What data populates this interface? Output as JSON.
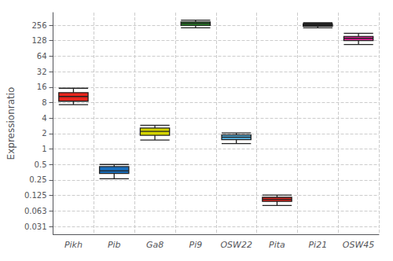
{
  "chart_data": {
    "type": "box",
    "categories": [
      "Pikh",
      "Pib",
      "Ga8",
      "Pi9",
      "OSW22",
      "Pita",
      "Pi21",
      "OSW45"
    ],
    "values": [
      {
        "low": 7.3,
        "q1": 8.5,
        "median": 10.5,
        "q3": 12.5,
        "high": 15.2
      },
      {
        "low": 0.265,
        "q1": 0.335,
        "median": 0.375,
        "q3": 0.455,
        "high": 0.5
      },
      {
        "low": 1.5,
        "q1": 1.85,
        "median": 2.2,
        "q3": 2.55,
        "high": 2.9
      },
      {
        "low": 228,
        "q1": 252,
        "median": 275,
        "q3": 295,
        "high": 320
      },
      {
        "low": 1.28,
        "q1": 1.52,
        "median": 1.7,
        "q3": 1.88,
        "high": 2.05
      },
      {
        "low": 0.08,
        "q1": 0.096,
        "median": 0.105,
        "q3": 0.115,
        "high": 0.127
      },
      {
        "low": 228,
        "q1": 245,
        "median": 258,
        "q3": 270,
        "high": 285
      },
      {
        "low": 108,
        "q1": 128,
        "median": 142,
        "q3": 155,
        "high": 178
      }
    ],
    "colors": [
      "#e8241c",
      "#1a6fbd",
      "#d4d400",
      "#2aad2a",
      "#5bb8e8",
      "#e8241c",
      "#f5a800",
      "#e8259e"
    ],
    "ylabel": "Expressionratio",
    "log": "y",
    "ylim": [
      0.022,
      450
    ],
    "yticks": [
      0.031,
      0.063,
      0.125,
      0.25,
      0.5,
      1,
      2,
      4,
      8,
      16,
      32,
      64,
      128,
      256
    ],
    "grid": true
  }
}
